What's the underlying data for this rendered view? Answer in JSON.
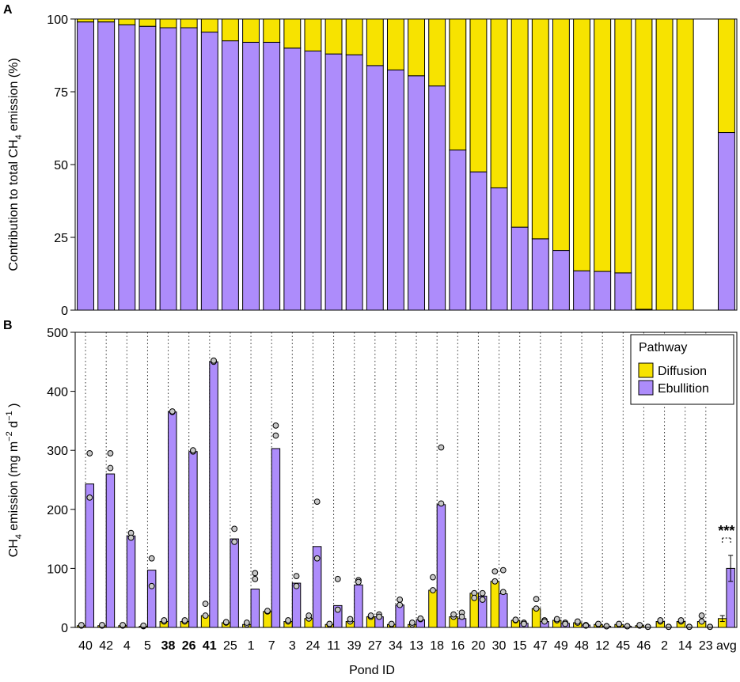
{
  "colors": {
    "diffusion": "#f7e300",
    "ebullition": "#ad8cfb",
    "dot": "#c8c8c8",
    "axis": "#000000"
  },
  "chart_data": [
    {
      "id": "A",
      "panel_label": "A",
      "type": "bar",
      "stacked": true,
      "ylabel_pre": "Contribution to total CH",
      "ylabel_sub": "4",
      "ylabel_post": " emission (%)",
      "ylim": [
        0,
        100
      ],
      "yticks": [
        0,
        25,
        50,
        75,
        100
      ],
      "categories": [
        "40",
        "42",
        "4",
        "5",
        "38",
        "26",
        "41",
        "25",
        "1",
        "7",
        "3",
        "24",
        "11",
        "39",
        "27",
        "34",
        "13",
        "18",
        "16",
        "20",
        "30",
        "15",
        "47",
        "49",
        "48",
        "12",
        "45",
        "46",
        "2",
        "14",
        "23",
        "avg"
      ],
      "series": [
        {
          "name": "Ebullition",
          "values": [
            99,
            99,
            98,
            97.5,
            97,
            97,
            95.5,
            92.5,
            92,
            92,
            90,
            89,
            88,
            87.7,
            84,
            82.5,
            80.5,
            77,
            55,
            47.5,
            42,
            28.5,
            24.5,
            20.5,
            13.5,
            13.3,
            12.8,
            0.3,
            0,
            0,
            null,
            61
          ]
        },
        {
          "name": "Diffusion",
          "values": [
            1,
            1,
            2,
            2.5,
            3,
            3,
            4.5,
            7.5,
            8,
            8,
            10,
            11,
            12,
            12.3,
            16,
            17.5,
            19.5,
            23,
            45,
            52.5,
            58,
            71.5,
            75.5,
            79.5,
            86.5,
            86.7,
            87.2,
            99.7,
            100,
            100,
            null,
            39
          ]
        }
      ]
    },
    {
      "id": "B",
      "panel_label": "B",
      "type": "bar",
      "ylabel_pre": "CH",
      "ylabel_sub": "4",
      "ylabel_mid": " emission (mg m",
      "ylabel_sup1": "−2",
      "ylabel_gap": " d",
      "ylabel_sup2": "−1",
      "ylabel_post": " )",
      "xlabel": "Pond ID",
      "ylim": [
        0,
        500
      ],
      "yticks": [
        0,
        100,
        200,
        300,
        400,
        500
      ],
      "categories": [
        "40",
        "42",
        "4",
        "5",
        "38",
        "26",
        "41",
        "25",
        "1",
        "7",
        "3",
        "24",
        "11",
        "39",
        "27",
        "34",
        "13",
        "18",
        "16",
        "20",
        "30",
        "15",
        "47",
        "49",
        "48",
        "12",
        "45",
        "46",
        "2",
        "14",
        "23",
        "avg"
      ],
      "bold_categories": [
        "38",
        "26",
        "41"
      ],
      "series": [
        {
          "name": "Diffusion",
          "values": [
            3,
            3,
            3,
            2,
            10,
            10,
            20,
            8,
            5,
            27,
            10,
            15,
            5,
            10,
            18,
            5,
            5,
            63,
            18,
            58,
            78,
            12,
            32,
            12,
            8,
            5,
            5,
            3,
            10,
            10,
            10,
            15
          ]
        },
        {
          "name": "Ebullition",
          "values": [
            243,
            260,
            155,
            97,
            365,
            298,
            450,
            150,
            65,
            303,
            75,
            137,
            37,
            72,
            18,
            38,
            13,
            208,
            15,
            53,
            57,
            7,
            10,
            7,
            4,
            2,
            2,
            0,
            0,
            0,
            0,
            100
          ]
        }
      ],
      "points": {
        "Diffusion": [
          [
            3,
            4
          ],
          [
            3,
            4
          ],
          [
            3,
            4
          ],
          [
            2,
            3
          ],
          [
            10,
            12
          ],
          [
            10,
            12
          ],
          [
            20,
            40
          ],
          [
            8,
            9
          ],
          [
            5,
            8
          ],
          [
            27,
            28
          ],
          [
            10,
            12
          ],
          [
            15,
            20
          ],
          [
            5,
            6
          ],
          [
            10,
            14
          ],
          [
            18,
            20
          ],
          [
            5,
            6
          ],
          [
            5,
            8
          ],
          [
            63,
            85
          ],
          [
            18,
            22
          ],
          [
            58,
            50
          ],
          [
            78,
            95
          ],
          [
            12,
            13
          ],
          [
            32,
            48
          ],
          [
            12,
            14
          ],
          [
            8,
            10
          ],
          [
            5,
            6
          ],
          [
            5,
            6
          ],
          [
            3,
            4
          ],
          [
            10,
            12
          ],
          [
            10,
            12
          ],
          [
            10,
            20
          ],
          []
        ],
        "Ebullition": [
          [
            295,
            220
          ],
          [
            295,
            270
          ],
          [
            160,
            152
          ],
          [
            117,
            70
          ],
          [
            365,
            366
          ],
          [
            298,
            300
          ],
          [
            450,
            452
          ],
          [
            167,
            145
          ],
          [
            92,
            82
          ],
          [
            342,
            325
          ],
          [
            87,
            70
          ],
          [
            213,
            117
          ],
          [
            82,
            30
          ],
          [
            80,
            77
          ],
          [
            22,
            18
          ],
          [
            47,
            38
          ],
          [
            14,
            15
          ],
          [
            305,
            210
          ],
          [
            25,
            18
          ],
          [
            58,
            47
          ],
          [
            97,
            60
          ],
          [
            8,
            6
          ],
          [
            12,
            10
          ],
          [
            8,
            6
          ],
          [
            4,
            3
          ],
          [
            2,
            2
          ],
          [
            2,
            2
          ],
          [
            1,
            1
          ],
          [
            1,
            1
          ],
          [
            1,
            1
          ],
          [
            1,
            1
          ],
          []
        ]
      },
      "error_bars": {
        "Diffusion": [
          null,
          null,
          null,
          null,
          null,
          null,
          null,
          null,
          null,
          null,
          null,
          null,
          null,
          null,
          null,
          null,
          null,
          null,
          null,
          null,
          null,
          null,
          null,
          null,
          null,
          null,
          null,
          null,
          null,
          null,
          null,
          5
        ],
        "Ebullition": [
          null,
          null,
          null,
          null,
          null,
          null,
          null,
          null,
          null,
          null,
          null,
          null,
          null,
          null,
          null,
          null,
          null,
          null,
          null,
          null,
          null,
          null,
          null,
          null,
          null,
          null,
          null,
          null,
          null,
          null,
          null,
          22
        ]
      },
      "annotation": "***",
      "annotation_category": "avg",
      "legend_title": "Pathway",
      "legend_entries": [
        "Diffusion",
        "Ebullition"
      ],
      "legend_position": "top-right"
    }
  ]
}
